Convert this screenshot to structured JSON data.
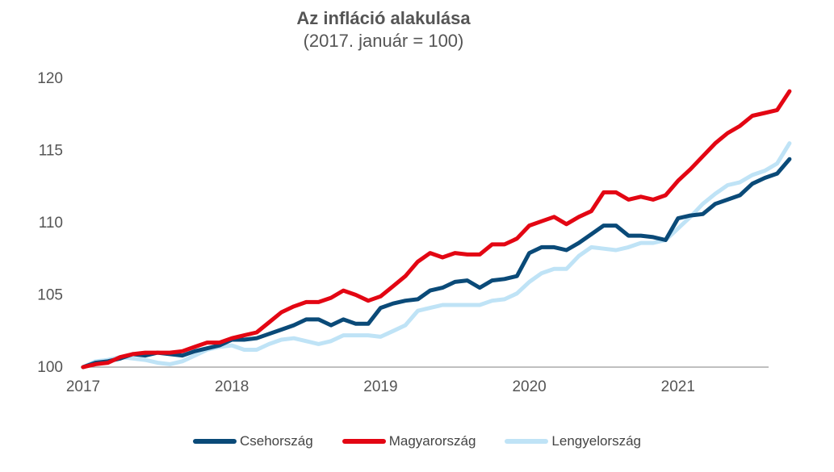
{
  "chart_data": {
    "type": "line",
    "title": "Az infláció alakulása",
    "subtitle": "(2017. január = 100)",
    "xlabel": "",
    "ylabel": "",
    "ylim": [
      100,
      120
    ],
    "yticks": [
      100,
      105,
      110,
      115,
      120
    ],
    "xticks": [
      "2017",
      "2018",
      "2019",
      "2020",
      "2021"
    ],
    "grid": false,
    "legend_position": "bottom",
    "x": [
      "2017-01",
      "2017-02",
      "2017-03",
      "2017-04",
      "2017-05",
      "2017-06",
      "2017-07",
      "2017-08",
      "2017-09",
      "2017-10",
      "2017-11",
      "2017-12",
      "2018-01",
      "2018-02",
      "2018-03",
      "2018-04",
      "2018-05",
      "2018-06",
      "2018-07",
      "2018-08",
      "2018-09",
      "2018-10",
      "2018-11",
      "2018-12",
      "2019-01",
      "2019-02",
      "2019-03",
      "2019-04",
      "2019-05",
      "2019-06",
      "2019-07",
      "2019-08",
      "2019-09",
      "2019-10",
      "2019-11",
      "2019-12",
      "2020-01",
      "2020-02",
      "2020-03",
      "2020-04",
      "2020-05",
      "2020-06",
      "2020-07",
      "2020-08",
      "2020-09",
      "2020-10",
      "2020-11",
      "2020-12",
      "2021-01",
      "2021-02",
      "2021-03",
      "2021-04",
      "2021-05",
      "2021-06",
      "2021-07",
      "2021-08",
      "2021-09",
      "2021-10"
    ],
    "series": [
      {
        "name": "Csehország",
        "color": "#0a4a78",
        "values": [
          100.0,
          100.3,
          100.4,
          100.6,
          100.9,
          100.8,
          101.0,
          100.9,
          100.8,
          101.1,
          101.3,
          101.5,
          101.9,
          101.9,
          102.0,
          102.3,
          102.6,
          102.9,
          103.3,
          103.3,
          102.9,
          103.3,
          103.0,
          103.0,
          104.1,
          104.4,
          104.6,
          104.7,
          105.3,
          105.5,
          105.9,
          106.0,
          105.5,
          106.0,
          106.1,
          106.3,
          107.9,
          108.3,
          108.3,
          108.1,
          108.6,
          109.2,
          109.8,
          109.8,
          109.1,
          109.1,
          109.0,
          108.8,
          110.3,
          110.5,
          110.6,
          111.3,
          111.6,
          111.9,
          112.7,
          113.1,
          113.4,
          114.4
        ]
      },
      {
        "name": "Magyarország",
        "color": "#e30613",
        "values": [
          100.0,
          100.2,
          100.3,
          100.7,
          100.9,
          101.0,
          101.0,
          101.0,
          101.1,
          101.4,
          101.7,
          101.7,
          102.0,
          102.2,
          102.4,
          103.1,
          103.8,
          104.2,
          104.5,
          104.5,
          104.8,
          105.3,
          105.0,
          104.6,
          104.9,
          105.6,
          106.3,
          107.3,
          107.9,
          107.6,
          107.9,
          107.8,
          107.8,
          108.5,
          108.5,
          108.9,
          109.8,
          110.1,
          110.4,
          109.9,
          110.4,
          110.8,
          112.1,
          112.1,
          111.6,
          111.8,
          111.6,
          111.9,
          112.9,
          113.7,
          114.6,
          115.5,
          116.2,
          116.7,
          117.4,
          117.6,
          117.8,
          119.1
        ]
      },
      {
        "name": "Lengyelország",
        "color": "#bfe3f6",
        "values": [
          100.0,
          100.4,
          100.5,
          100.7,
          100.6,
          100.5,
          100.3,
          100.2,
          100.4,
          100.8,
          101.2,
          101.4,
          101.5,
          101.2,
          101.2,
          101.6,
          101.9,
          102.0,
          101.8,
          101.6,
          101.8,
          102.2,
          102.2,
          102.2,
          102.1,
          102.5,
          102.9,
          103.9,
          104.1,
          104.3,
          104.3,
          104.3,
          104.3,
          104.6,
          104.7,
          105.1,
          105.9,
          106.5,
          106.8,
          106.8,
          107.7,
          108.3,
          108.2,
          108.1,
          108.3,
          108.6,
          108.6,
          108.8,
          109.6,
          110.4,
          111.3,
          112.0,
          112.6,
          112.8,
          113.3,
          113.6,
          114.1,
          115.5
        ]
      }
    ]
  }
}
